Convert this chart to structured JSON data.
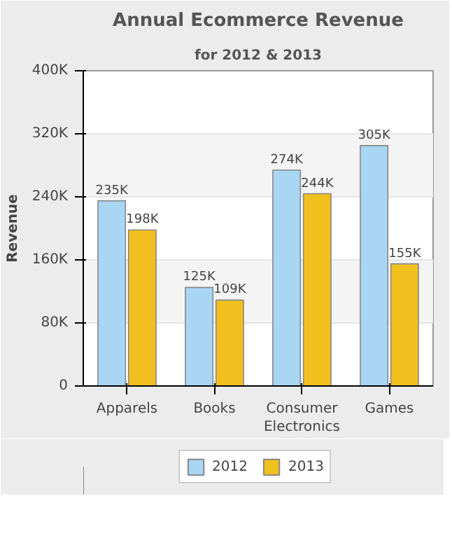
{
  "chart_data": {
    "type": "bar",
    "title": "Annual Ecommerce Revenue",
    "subtitle": "for 2012 & 2013",
    "ylabel": "Revenue",
    "categories": [
      "Apparels",
      "Books",
      "Consumer Electronics",
      "Games"
    ],
    "series": [
      {
        "name": "2012",
        "color": "#a9d6f3",
        "values": [
          235000,
          125000,
          274000,
          305000
        ],
        "value_labels": [
          "235K",
          "125K",
          "274K",
          "305K"
        ]
      },
      {
        "name": "2013",
        "color": "#f2c01e",
        "values": [
          198000,
          109000,
          244000,
          155000
        ],
        "value_labels": [
          "198K",
          "109K",
          "244K",
          "155K"
        ]
      }
    ],
    "ylim": [
      0,
      400000
    ],
    "yticks": [
      {
        "value": 0,
        "label": "0"
      },
      {
        "value": 80000,
        "label": "80K"
      },
      {
        "value": 160000,
        "label": "160K"
      },
      {
        "value": 240000,
        "label": "240K"
      },
      {
        "value": 320000,
        "label": "320K"
      },
      {
        "value": 400000,
        "label": "400K"
      }
    ],
    "grid": "y",
    "legend": "bottom"
  }
}
